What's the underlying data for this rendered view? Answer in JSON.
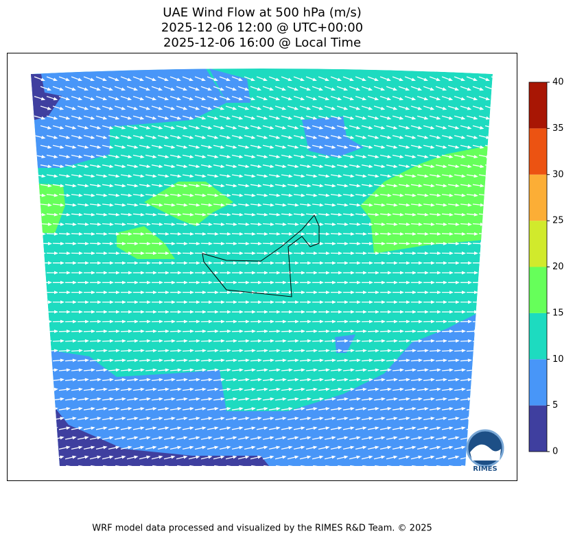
{
  "title": [
    "UAE Wind Flow at 500 hPa (m/s)",
    "2025-12-06 12:00 @ UTC+00:00",
    "2025-12-06 16:00 @ Local Time"
  ],
  "colorbar": {
    "levels": [
      0,
      5,
      10,
      15,
      20,
      25,
      30,
      35,
      40
    ],
    "colors": [
      "#3f3f9f",
      "#4896f8",
      "#1ddbc0",
      "#66ff5a",
      "#d1ea2c",
      "#fcae36",
      "#ec5312",
      "#a81604"
    ]
  },
  "logo": {
    "label": "RIMES"
  },
  "footer": "WRF model data processed and visualized by the RIMES R&D Team. © 2025"
}
